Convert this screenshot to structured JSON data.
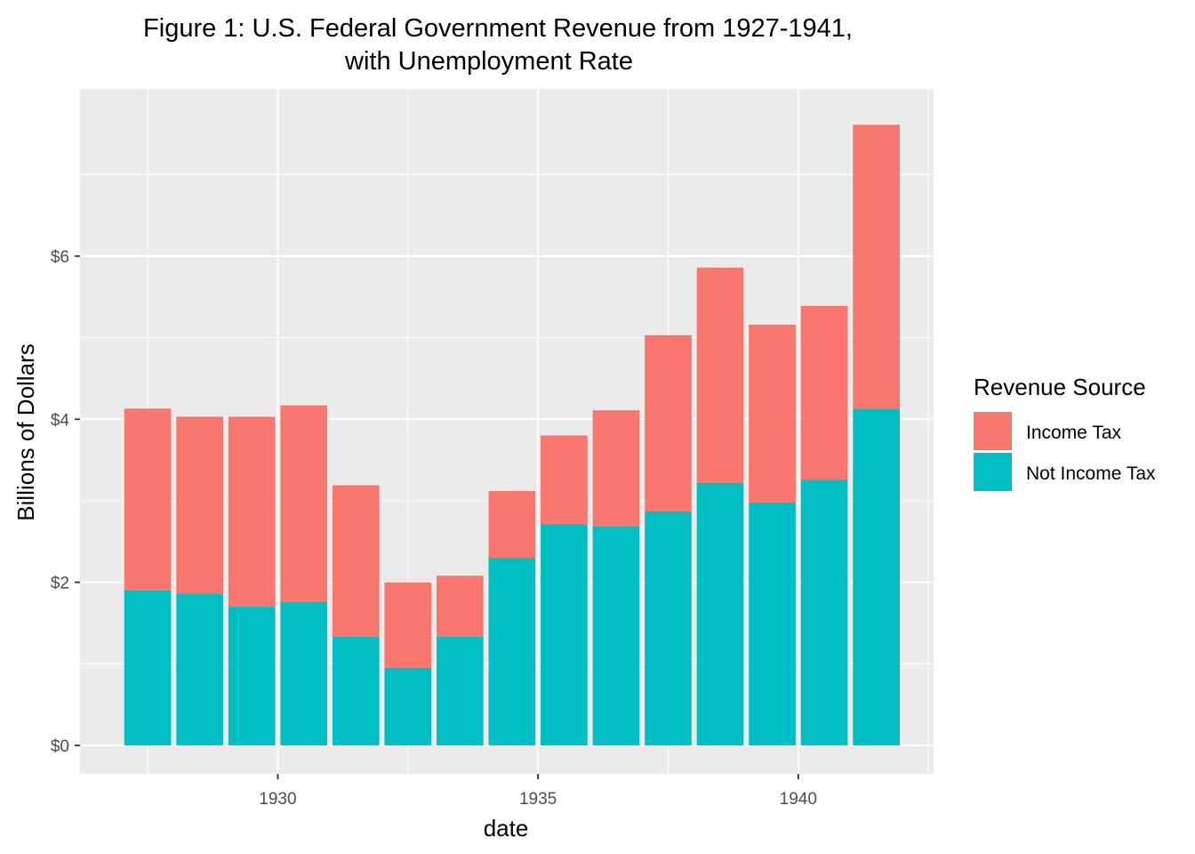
{
  "chart_data": {
    "type": "bar",
    "stacked": true,
    "title_lines": [
      "Figure 1: U.S. Federal Government Revenue from 1927-1941,",
      "with Unemployment Rate"
    ],
    "xlabel": "date",
    "ylabel": "Billions of Dollars",
    "x": [
      1927.5,
      1928.5,
      1929.5,
      1930.5,
      1931.5,
      1932.5,
      1933.5,
      1934.5,
      1935.5,
      1936.5,
      1937.5,
      1938.5,
      1939.5,
      1940.5,
      1941.5
    ],
    "xlim": [
      1926.2,
      1942.6
    ],
    "ylim": [
      -0.35,
      8.05
    ],
    "x_ticks": [
      {
        "value": 1930,
        "label": "1930"
      },
      {
        "value": 1935,
        "label": "1935"
      },
      {
        "value": 1940,
        "label": "1940"
      }
    ],
    "y_ticks": [
      {
        "value": 0,
        "label": "$0"
      },
      {
        "value": 2,
        "label": "$2"
      },
      {
        "value": 4,
        "label": "$4"
      },
      {
        "value": 6,
        "label": "$6"
      }
    ],
    "grid": true,
    "legend": {
      "title": "Revenue Source",
      "position": "right"
    },
    "series": [
      {
        "name": "Not Income Tax",
        "color": "#00BFC4",
        "values": [
          1.9,
          1.86,
          1.7,
          1.76,
          1.33,
          0.95,
          1.33,
          2.3,
          2.71,
          2.69,
          2.87,
          3.22,
          2.98,
          3.26,
          4.13
        ]
      },
      {
        "name": "Income Tax",
        "color": "#F8766D",
        "values": [
          2.23,
          2.17,
          2.33,
          2.41,
          1.86,
          1.05,
          0.75,
          0.82,
          1.09,
          1.42,
          2.16,
          2.64,
          2.18,
          2.13,
          3.48
        ]
      }
    ],
    "legend_order": [
      "Income Tax",
      "Not Income Tax"
    ],
    "colors": {
      "panel_background": "#EBEBEB",
      "grid_major": "#FFFFFF",
      "tick_text": "#4D4D4D"
    }
  }
}
